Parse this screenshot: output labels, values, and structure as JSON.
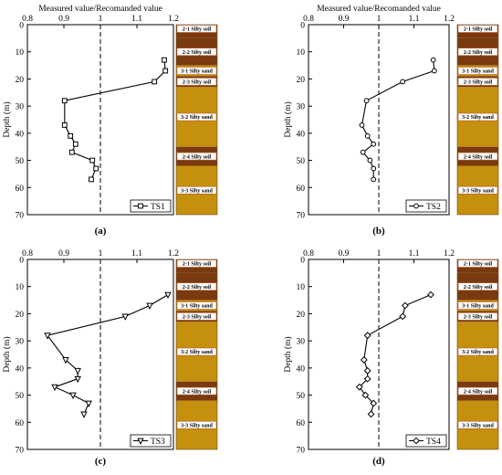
{
  "chart_data": [
    {
      "type": "line",
      "panel_label": "(a)",
      "title": "Measured value/Recomanded value",
      "ylabel": "Depth (m)",
      "xlim": [
        0.8,
        1.2
      ],
      "ylim": [
        0,
        70
      ],
      "x_ticks": [
        "0.8",
        "0.9",
        "1",
        "1.1",
        "1.2"
      ],
      "y_ticks": [
        "0",
        "10",
        "20",
        "30",
        "40",
        "50",
        "60",
        "70"
      ],
      "reference_x": 1.0,
      "series": [
        {
          "name": "TS1",
          "marker": "square",
          "points": [
            {
              "x": 1.175,
              "y": 13
            },
            {
              "x": 1.178,
              "y": 17
            },
            {
              "x": 1.148,
              "y": 21
            },
            {
              "x": 0.902,
              "y": 28
            },
            {
              "x": 0.902,
              "y": 37
            },
            {
              "x": 0.918,
              "y": 41
            },
            {
              "x": 0.932,
              "y": 44
            },
            {
              "x": 0.922,
              "y": 47
            },
            {
              "x": 0.978,
              "y": 50
            },
            {
              "x": 0.988,
              "y": 53
            },
            {
              "x": 0.975,
              "y": 57
            }
          ]
        }
      ]
    },
    {
      "type": "line",
      "panel_label": "(b)",
      "title": "Measured value/Recomanded value",
      "ylabel": "Depth (m)",
      "xlim": [
        0.8,
        1.2
      ],
      "ylim": [
        0,
        70
      ],
      "x_ticks": [
        "0.8",
        "0.9",
        "1",
        "1.1",
        "1.2"
      ],
      "y_ticks": [
        "0",
        "10",
        "20",
        "30",
        "40",
        "50",
        "60",
        "70"
      ],
      "reference_x": 1.0,
      "series": [
        {
          "name": "TS2",
          "marker": "circle",
          "points": [
            {
              "x": 1.155,
              "y": 13
            },
            {
              "x": 1.158,
              "y": 17
            },
            {
              "x": 1.068,
              "y": 21
            },
            {
              "x": 0.965,
              "y": 28
            },
            {
              "x": 0.952,
              "y": 37
            },
            {
              "x": 0.968,
              "y": 41
            },
            {
              "x": 0.985,
              "y": 44
            },
            {
              "x": 0.955,
              "y": 47
            },
            {
              "x": 0.975,
              "y": 50
            },
            {
              "x": 0.985,
              "y": 53
            },
            {
              "x": 0.985,
              "y": 57
            }
          ]
        }
      ]
    },
    {
      "type": "line",
      "panel_label": "(c)",
      "title": "",
      "ylabel": "Depth (m)",
      "xlim": [
        0.8,
        1.2
      ],
      "ylim": [
        0,
        70
      ],
      "x_ticks": [
        "0.8",
        "0.9",
        "1",
        "1.1",
        "1.2"
      ],
      "y_ticks": [
        "0",
        "10",
        "20",
        "30",
        "40",
        "50",
        "60",
        "70"
      ],
      "reference_x": 1.0,
      "series": [
        {
          "name": "TS3",
          "marker": "triangle-down",
          "points": [
            {
              "x": 1.185,
              "y": 13
            },
            {
              "x": 1.135,
              "y": 17
            },
            {
              "x": 1.068,
              "y": 21
            },
            {
              "x": 0.855,
              "y": 28
            },
            {
              "x": 0.905,
              "y": 37
            },
            {
              "x": 0.938,
              "y": 41
            },
            {
              "x": 0.938,
              "y": 44
            },
            {
              "x": 0.875,
              "y": 47
            },
            {
              "x": 0.925,
              "y": 50
            },
            {
              "x": 0.968,
              "y": 53
            },
            {
              "x": 0.955,
              "y": 57
            }
          ]
        }
      ]
    },
    {
      "type": "line",
      "panel_label": "(d)",
      "title": "",
      "ylabel": "Depth (m)",
      "xlim": [
        0.8,
        1.2
      ],
      "ylim": [
        0,
        70
      ],
      "x_ticks": [
        "0.8",
        "0.9",
        "1",
        "1.1",
        "1.2"
      ],
      "y_ticks": [
        "0",
        "10",
        "20",
        "30",
        "40",
        "50",
        "60",
        "70"
      ],
      "reference_x": 1.0,
      "series": [
        {
          "name": "TS4",
          "marker": "diamond",
          "points": [
            {
              "x": 1.148,
              "y": 13
            },
            {
              "x": 1.075,
              "y": 17
            },
            {
              "x": 1.068,
              "y": 21
            },
            {
              "x": 0.968,
              "y": 28
            },
            {
              "x": 0.958,
              "y": 37
            },
            {
              "x": 0.968,
              "y": 41
            },
            {
              "x": 0.968,
              "y": 44
            },
            {
              "x": 0.945,
              "y": 47
            },
            {
              "x": 0.962,
              "y": 50
            },
            {
              "x": 0.985,
              "y": 53
            },
            {
              "x": 0.978,
              "y": 57
            }
          ]
        }
      ]
    }
  ],
  "soil_column": {
    "colors": {
      "silty_soil": "#7a3a10",
      "silty_sand": "#c4900e",
      "label_box": "#ffffff",
      "label_border": "#c05a28"
    },
    "layers": [
      {
        "label": "2-1 Silty soil",
        "top": 0,
        "bottom": 5,
        "kind": "silty_soil"
      },
      {
        "label": "2-2 Silty soil",
        "top": 5,
        "bottom": 15,
        "kind": "silty_soil"
      },
      {
        "label": "3-1 Silty sand",
        "top": 15,
        "bottom": 19,
        "kind": "silty_sand"
      },
      {
        "label": "2-3 Silty soil",
        "top": 19,
        "bottom": 23,
        "kind": "silty_soil"
      },
      {
        "label": "3-2 Silty sand",
        "top": 23,
        "bottom": 45,
        "kind": "silty_sand"
      },
      {
        "label": "2-4 Silty soil",
        "top": 45,
        "bottom": 52,
        "kind": "silty_soil"
      },
      {
        "label": "3-3 Silty sand",
        "top": 52,
        "bottom": 70,
        "kind": "silty_sand"
      }
    ]
  }
}
